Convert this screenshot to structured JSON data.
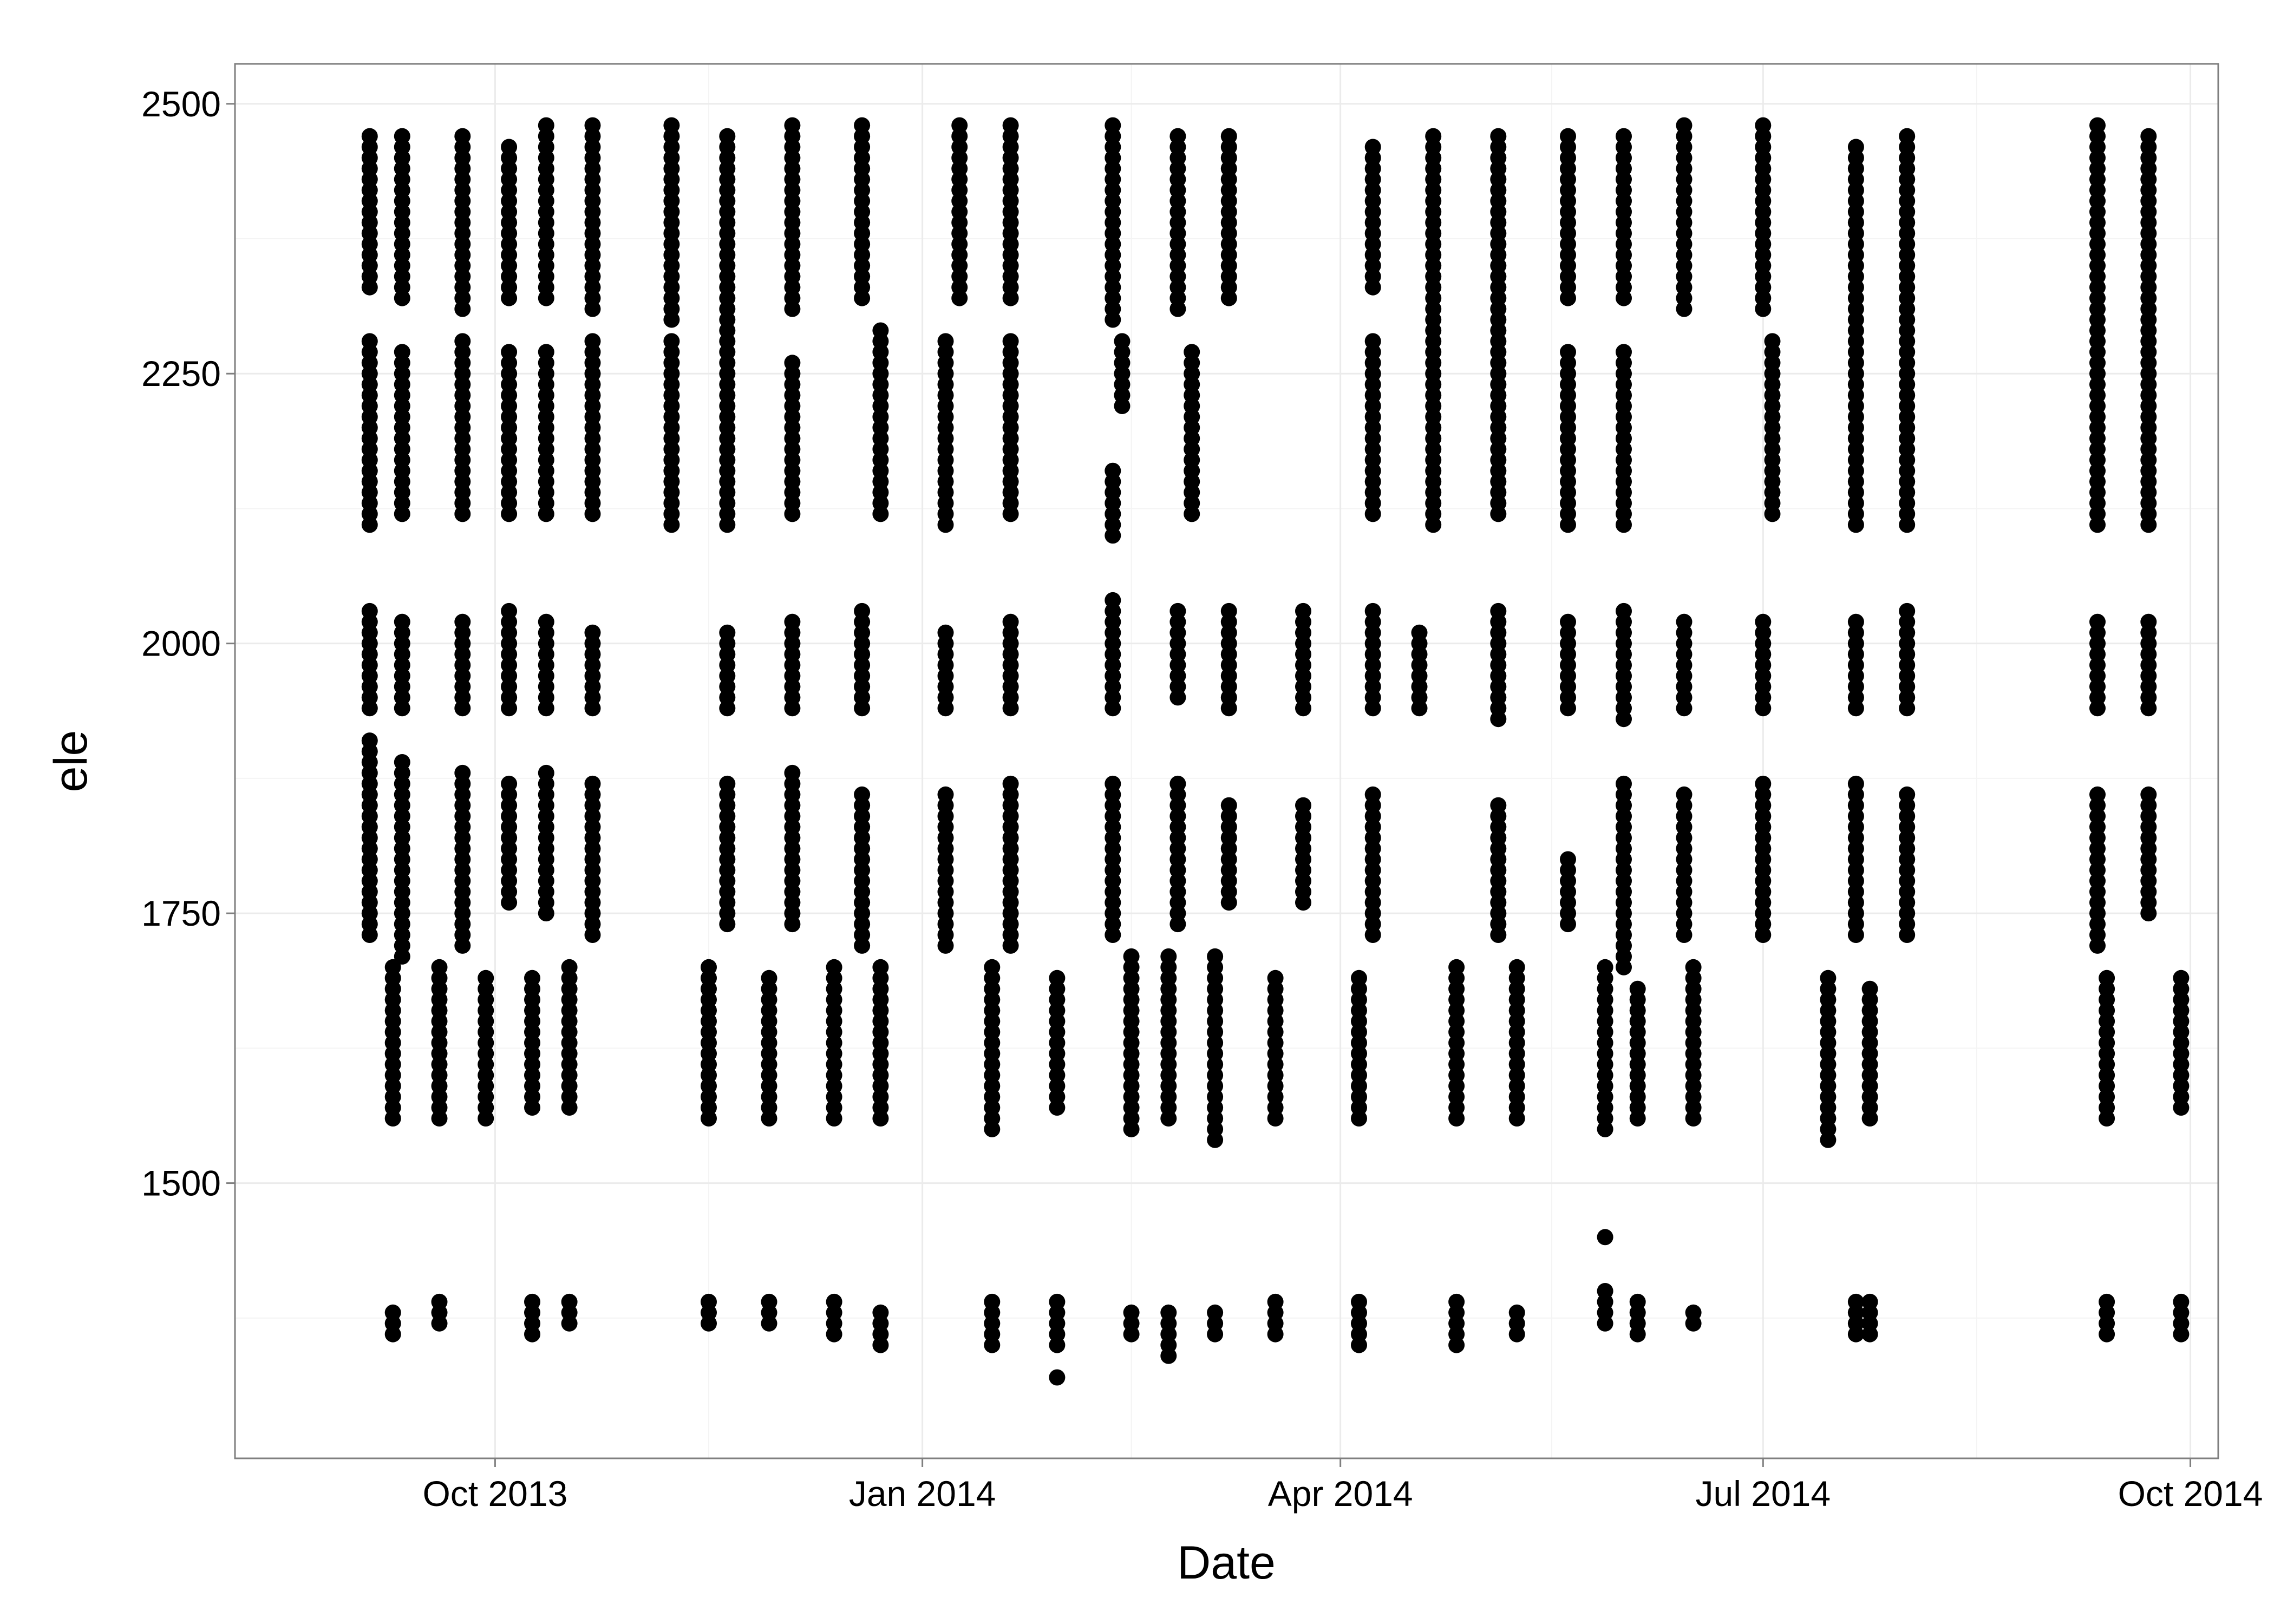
{
  "chart_data": {
    "type": "scatter",
    "title": "",
    "xlabel": "Date",
    "ylabel": "ele",
    "xlim": [
      "2013-08-06",
      "2014-10-07"
    ],
    "ylim": [
      1245,
      2537
    ],
    "grid": true,
    "x_ticks": [
      {
        "date": "2013-10-01",
        "label": "Oct 2013"
      },
      {
        "date": "2014-01-01",
        "label": "Jan 2014"
      },
      {
        "date": "2014-04-01",
        "label": "Apr 2014"
      },
      {
        "date": "2014-07-01",
        "label": "Jul 2014"
      },
      {
        "date": "2014-10-01",
        "label": "Oct 2014"
      }
    ],
    "y_ticks": [
      1500,
      1750,
      2000,
      2250,
      2500
    ],
    "marker_color": "#000000",
    "columns": [
      {
        "date": "2013-09-04",
        "ranges": [
          [
            2330,
            2470
          ],
          [
            2110,
            2280
          ],
          [
            1940,
            2030
          ],
          [
            1730,
            1910
          ]
        ]
      },
      {
        "date": "2013-09-09",
        "ranges": [
          [
            1360,
            1380
          ],
          [
            1560,
            1700
          ]
        ]
      },
      {
        "date": "2013-09-11",
        "ranges": [
          [
            2320,
            2470
          ],
          [
            2120,
            2270
          ],
          [
            1940,
            2020
          ],
          [
            1710,
            1890
          ]
        ]
      },
      {
        "date": "2013-09-19",
        "ranges": [
          [
            1370,
            1390
          ],
          [
            1560,
            1700
          ]
        ]
      },
      {
        "date": "2013-09-24",
        "ranges": [
          [
            2310,
            2470
          ],
          [
            2120,
            2280
          ],
          [
            1940,
            2020
          ],
          [
            1720,
            1880
          ]
        ]
      },
      {
        "date": "2013-09-29",
        "ranges": [
          [
            1560,
            1690
          ]
        ]
      },
      {
        "date": "2013-10-04",
        "ranges": [
          [
            2320,
            2460
          ],
          [
            2120,
            2270
          ],
          [
            1940,
            2030
          ],
          [
            1760,
            1870
          ]
        ]
      },
      {
        "date": "2013-10-09",
        "ranges": [
          [
            1360,
            1390
          ],
          [
            1570,
            1690
          ]
        ]
      },
      {
        "date": "2013-10-12",
        "ranges": [
          [
            2320,
            2480
          ],
          [
            2120,
            2270
          ],
          [
            1940,
            2020
          ],
          [
            1750,
            1880
          ]
        ]
      },
      {
        "date": "2013-10-17",
        "ranges": [
          [
            1370,
            1390
          ],
          [
            1570,
            1700
          ]
        ]
      },
      {
        "date": "2013-10-22",
        "ranges": [
          [
            2310,
            2480
          ],
          [
            2120,
            2280
          ],
          [
            1940,
            2010
          ],
          [
            1730,
            1870
          ]
        ]
      },
      {
        "date": "2013-11-08",
        "ranges": [
          [
            2300,
            2480
          ],
          [
            2110,
            2280
          ]
        ]
      },
      {
        "date": "2013-11-16",
        "ranges": [
          [
            1370,
            1390
          ],
          [
            1560,
            1700
          ]
        ]
      },
      {
        "date": "2013-11-20",
        "ranges": [
          [
            2110,
            2470
          ],
          [
            1940,
            2010
          ],
          [
            1740,
            1870
          ]
        ]
      },
      {
        "date": "2013-11-29",
        "ranges": [
          [
            1370,
            1390
          ],
          [
            1560,
            1690
          ]
        ]
      },
      {
        "date": "2013-12-04",
        "ranges": [
          [
            2310,
            2480
          ],
          [
            2120,
            2260
          ],
          [
            1940,
            2020
          ],
          [
            1740,
            1880
          ]
        ]
      },
      {
        "date": "2013-12-13",
        "ranges": [
          [
            1360,
            1390
          ],
          [
            1560,
            1700
          ]
        ]
      },
      {
        "date": "2013-12-19",
        "ranges": [
          [
            2320,
            2480
          ],
          [
            1940,
            2030
          ],
          [
            1720,
            1860
          ]
        ]
      },
      {
        "date": "2013-12-23",
        "ranges": [
          [
            1350,
            1380
          ],
          [
            1560,
            1700
          ],
          [
            2120,
            2290
          ]
        ]
      },
      {
        "date": "2014-01-06",
        "ranges": [
          [
            2110,
            2280
          ],
          [
            1940,
            2010
          ],
          [
            1720,
            1860
          ]
        ]
      },
      {
        "date": "2014-01-09",
        "ranges": [
          [
            2320,
            2480
          ]
        ]
      },
      {
        "date": "2014-01-16",
        "ranges": [
          [
            1350,
            1390
          ],
          [
            1550,
            1700
          ]
        ]
      },
      {
        "date": "2014-01-20",
        "ranges": [
          [
            2320,
            2480
          ],
          [
            2120,
            2280
          ],
          [
            1940,
            2020
          ],
          [
            1720,
            1870
          ]
        ]
      },
      {
        "date": "2014-01-30",
        "ranges": [
          [
            1320,
            1320
          ],
          [
            1350,
            1390
          ],
          [
            1570,
            1690
          ]
        ]
      },
      {
        "date": "2014-02-11",
        "ranges": [
          [
            2300,
            2480
          ],
          [
            1940,
            2040
          ],
          [
            1730,
            1870
          ],
          [
            2100,
            2160
          ]
        ]
      },
      {
        "date": "2014-02-13",
        "ranges": [
          [
            2220,
            2280
          ]
        ]
      },
      {
        "date": "2014-02-15",
        "ranges": [
          [
            1360,
            1380
          ],
          [
            1550,
            1710
          ]
        ]
      },
      {
        "date": "2014-02-23",
        "ranges": [
          [
            1340,
            1380
          ],
          [
            1560,
            1710
          ]
        ]
      },
      {
        "date": "2014-02-25",
        "ranges": [
          [
            2310,
            2470
          ],
          [
            1950,
            2030
          ],
          [
            1740,
            1870
          ]
        ]
      },
      {
        "date": "2014-02-28",
        "ranges": [
          [
            2120,
            2270
          ]
        ]
      },
      {
        "date": "2014-03-05",
        "ranges": [
          [
            1360,
            1380
          ],
          [
            1540,
            1710
          ]
        ]
      },
      {
        "date": "2014-03-08",
        "ranges": [
          [
            2320,
            2470
          ],
          [
            1940,
            2030
          ],
          [
            1760,
            1850
          ]
        ]
      },
      {
        "date": "2014-03-18",
        "ranges": [
          [
            1360,
            1390
          ],
          [
            1560,
            1690
          ]
        ]
      },
      {
        "date": "2014-03-24",
        "ranges": [
          [
            1940,
            2030
          ],
          [
            1760,
            1850
          ]
        ]
      },
      {
        "date": "2014-04-05",
        "ranges": [
          [
            1350,
            1390
          ],
          [
            1560,
            1690
          ]
        ]
      },
      {
        "date": "2014-04-08",
        "ranges": [
          [
            2330,
            2460
          ],
          [
            2120,
            2280
          ],
          [
            1940,
            2030
          ],
          [
            1730,
            1860
          ]
        ]
      },
      {
        "date": "2014-04-18",
        "ranges": [
          [
            1940,
            2010
          ]
        ]
      },
      {
        "date": "2014-04-21",
        "ranges": [
          [
            2110,
            2470
          ]
        ]
      },
      {
        "date": "2014-04-26",
        "ranges": [
          [
            1350,
            1390
          ],
          [
            1560,
            1700
          ]
        ]
      },
      {
        "date": "2014-05-05",
        "ranges": [
          [
            2120,
            2470
          ],
          [
            1930,
            2030
          ],
          [
            1730,
            1850
          ]
        ]
      },
      {
        "date": "2014-05-09",
        "ranges": [
          [
            1360,
            1380
          ],
          [
            1560,
            1700
          ]
        ]
      },
      {
        "date": "2014-05-20",
        "ranges": [
          [
            2320,
            2470
          ],
          [
            2110,
            2270
          ],
          [
            1940,
            2020
          ],
          [
            1740,
            1800
          ]
        ]
      },
      {
        "date": "2014-05-28",
        "ranges": [
          [
            1370,
            1400
          ],
          [
            1450,
            1450
          ],
          [
            1550,
            1700
          ]
        ]
      },
      {
        "date": "2014-06-01",
        "ranges": [
          [
            2320,
            2470
          ],
          [
            2110,
            2270
          ],
          [
            1930,
            2030
          ],
          [
            1700,
            1870
          ]
        ]
      },
      {
        "date": "2014-06-04",
        "ranges": [
          [
            1360,
            1390
          ],
          [
            1560,
            1680
          ]
        ]
      },
      {
        "date": "2014-06-14",
        "ranges": [
          [
            2310,
            2480
          ],
          [
            1940,
            2020
          ],
          [
            1730,
            1860
          ]
        ]
      },
      {
        "date": "2014-06-16",
        "ranges": [
          [
            1370,
            1380
          ],
          [
            1560,
            1700
          ]
        ]
      },
      {
        "date": "2014-07-01",
        "ranges": [
          [
            2310,
            2480
          ],
          [
            1940,
            2020
          ],
          [
            1730,
            1870
          ]
        ]
      },
      {
        "date": "2014-07-03",
        "ranges": [
          [
            2120,
            2280
          ]
        ]
      },
      {
        "date": "2014-07-15",
        "ranges": [
          [
            1540,
            1690
          ]
        ]
      },
      {
        "date": "2014-07-21",
        "ranges": [
          [
            1360,
            1390
          ],
          [
            2110,
            2460
          ],
          [
            1940,
            2020
          ],
          [
            1730,
            1870
          ]
        ]
      },
      {
        "date": "2014-07-24",
        "ranges": [
          [
            1360,
            1390
          ],
          [
            1560,
            1680
          ]
        ]
      },
      {
        "date": "2014-08-01",
        "ranges": [
          [
            2110,
            2470
          ],
          [
            1940,
            2030
          ],
          [
            1730,
            1860
          ]
        ]
      },
      {
        "date": "2014-09-11",
        "ranges": [
          [
            2110,
            2480
          ],
          [
            1940,
            2020
          ],
          [
            1720,
            1860
          ]
        ]
      },
      {
        "date": "2014-09-13",
        "ranges": [
          [
            1360,
            1390
          ],
          [
            1560,
            1690
          ]
        ]
      },
      {
        "date": "2014-09-22",
        "ranges": [
          [
            2110,
            2470
          ],
          [
            1940,
            2020
          ],
          [
            1750,
            1860
          ]
        ]
      },
      {
        "date": "2014-09-29",
        "ranges": [
          [
            1360,
            1390
          ],
          [
            1570,
            1690
          ]
        ]
      }
    ]
  }
}
